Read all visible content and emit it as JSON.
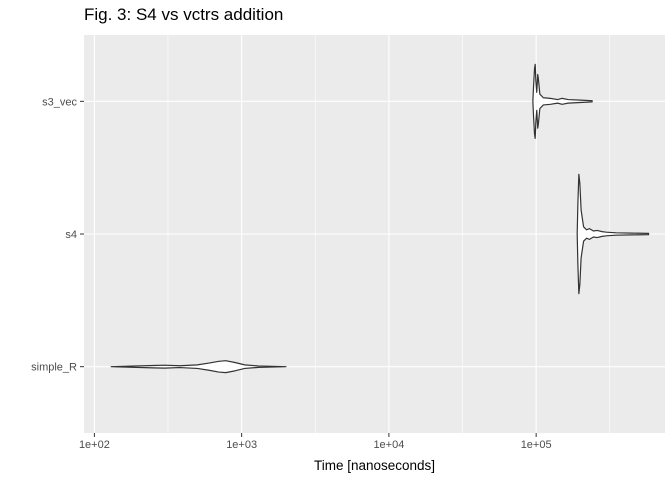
{
  "chart_data": {
    "type": "violin",
    "title": "Fig. 3: S4 vs vctrs addition",
    "xlabel": "Time [nanoseconds]",
    "ylabel": "",
    "x_scale": "log10",
    "xlim": [
      85,
      750000
    ],
    "x_ticks": [
      {
        "value": 100,
        "label": "1e+02"
      },
      {
        "value": 1000,
        "label": "1e+03"
      },
      {
        "value": 10000,
        "label": "1e+04"
      },
      {
        "value": 100000,
        "label": "1e+05"
      }
    ],
    "x_minor_ticks": [
      316,
      3160,
      31600,
      316000
    ],
    "categories": [
      "s3_vec",
      "s4",
      "simple_R"
    ],
    "grid": true,
    "legend": "none",
    "colors": {
      "panel": "#ebebeb",
      "grid": "#ffffff",
      "outline": "#333333",
      "tick": "#333333"
    },
    "series": [
      {
        "category": "s3_vec",
        "min": 95000,
        "max": 240000,
        "density": [
          [
            95000,
            0.0
          ],
          [
            96000,
            0.25
          ],
          [
            97500,
            0.55
          ],
          [
            98500,
            0.62
          ],
          [
            99500,
            0.35
          ],
          [
            101000,
            0.15
          ],
          [
            102500,
            0.45
          ],
          [
            103500,
            0.38
          ],
          [
            106000,
            0.12
          ],
          [
            112000,
            0.06
          ],
          [
            125000,
            0.05
          ],
          [
            140000,
            0.03
          ],
          [
            150000,
            0.05
          ],
          [
            165000,
            0.03
          ],
          [
            200000,
            0.02
          ],
          [
            240000,
            0.01
          ]
        ]
      },
      {
        "category": "s4",
        "min": 190000,
        "max": 580000,
        "density": [
          [
            190000,
            0.0
          ],
          [
            192000,
            0.5
          ],
          [
            195000,
            1.0
          ],
          [
            198000,
            0.85
          ],
          [
            202000,
            0.4
          ],
          [
            210000,
            0.12
          ],
          [
            220000,
            0.07
          ],
          [
            230000,
            0.09
          ],
          [
            245000,
            0.05
          ],
          [
            260000,
            0.06
          ],
          [
            280000,
            0.04
          ],
          [
            300000,
            0.03
          ],
          [
            350000,
            0.02
          ],
          [
            450000,
            0.015
          ],
          [
            580000,
            0.01
          ]
        ]
      },
      {
        "category": "simple_R",
        "min": 130,
        "max": 2000,
        "density": [
          [
            130,
            0.0
          ],
          [
            180,
            0.01
          ],
          [
            250,
            0.02
          ],
          [
            300,
            0.025
          ],
          [
            380,
            0.015
          ],
          [
            500,
            0.03
          ],
          [
            600,
            0.06
          ],
          [
            700,
            0.09
          ],
          [
            780,
            0.1
          ],
          [
            900,
            0.07
          ],
          [
            1050,
            0.03
          ],
          [
            1300,
            0.012
          ],
          [
            1600,
            0.006
          ],
          [
            2000,
            0.0
          ]
        ]
      }
    ]
  }
}
